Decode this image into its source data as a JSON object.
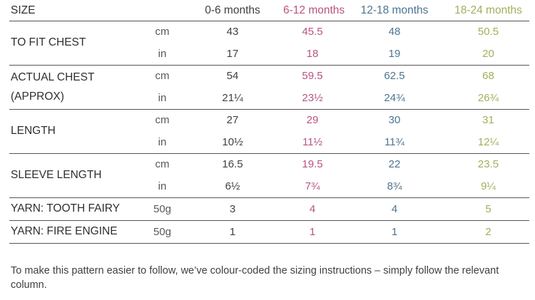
{
  "colors": {
    "size1": "#414042",
    "size2": "#b95481",
    "size3": "#4d7491",
    "size4": "#a3ae5b",
    "muted": "#58595b",
    "rule": "#565658"
  },
  "table": {
    "header": {
      "label": "SIZE",
      "columns": [
        {
          "label": "0-6 months"
        },
        {
          "label": "6-12 months"
        },
        {
          "label": "12-18 months"
        },
        {
          "label": "18-24 months"
        }
      ]
    },
    "rows": [
      {
        "label": "TO FIT CHEST",
        "subrows": [
          {
            "unit": "cm",
            "values": [
              "43",
              "45.5",
              "48",
              "50.5"
            ]
          },
          {
            "unit": "in",
            "values": [
              "17",
              "18",
              "19",
              "20"
            ]
          }
        ]
      },
      {
        "label": "ACTUAL CHEST (APPROX)",
        "subrows": [
          {
            "unit": "cm",
            "values": [
              "54",
              "59.5",
              "62.5",
              "68"
            ]
          },
          {
            "unit": "in",
            "values": [
              "21¼",
              "23½",
              "24¾",
              "26¾"
            ]
          }
        ]
      },
      {
        "label": "LENGTH",
        "subrows": [
          {
            "unit": "cm",
            "values": [
              "27",
              "29",
              "30",
              "31"
            ]
          },
          {
            "unit": "in",
            "values": [
              "10½",
              "11½",
              "11¾",
              "12¼"
            ]
          }
        ]
      },
      {
        "label": "SLEEVE LENGTH",
        "subrows": [
          {
            "unit": "cm",
            "values": [
              "16.5",
              "19.5",
              "22",
              "23.5"
            ]
          },
          {
            "unit": "in",
            "values": [
              "6½",
              "7¾",
              "8¾",
              "9¼"
            ]
          }
        ]
      },
      {
        "label": "YARN: TOOTH FAIRY",
        "subrows": [
          {
            "unit": "50g",
            "values": [
              "3",
              "4",
              "4",
              "5"
            ]
          }
        ]
      },
      {
        "label": "YARN: FIRE ENGINE",
        "subrows": [
          {
            "unit": "50g",
            "values": [
              "1",
              "1",
              "1",
              "2"
            ]
          }
        ]
      }
    ]
  },
  "footer": {
    "text": "To make this pattern easier to follow, we’ve colour-coded the sizing instructions – simply follow the relevant column."
  }
}
